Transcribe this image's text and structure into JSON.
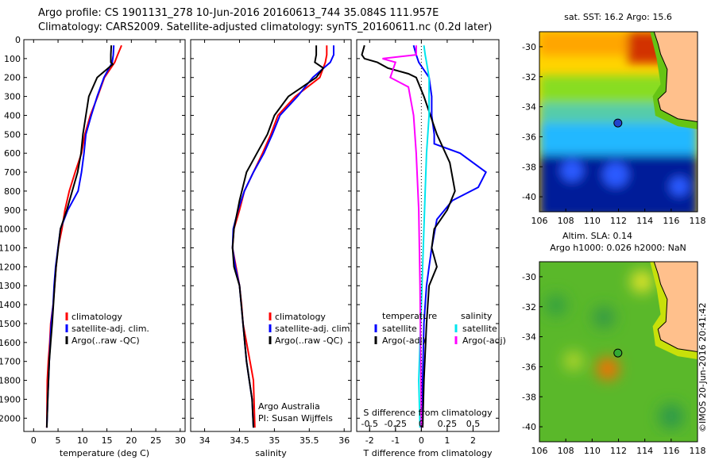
{
  "header": {
    "line1": "Argo profile: CS 1901131_278 10-Jun-2016 20160613_744 35.084S 111.957E",
    "line2": "Climatology: CARS2009. Satellite-adjusted climatology: synTS_20160611.nc (0.2d later)"
  },
  "colors": {
    "clim": "#ff0000",
    "sat": "#0000ff",
    "argo": "#000000",
    "salsat": "#00e5ee",
    "salargo": "#ff00ff",
    "marker": "#2244cc",
    "marker2": "#33aa33"
  },
  "chart_data": [
    {
      "type": "line",
      "id": "temperature",
      "xlabel": "temperature (deg C)",
      "xlim": [
        -2,
        31
      ],
      "xticks": [
        0,
        5,
        10,
        15,
        20,
        25,
        30
      ],
      "ylim": [
        2070,
        0
      ],
      "yticks": [
        0,
        100,
        200,
        300,
        400,
        500,
        600,
        700,
        800,
        900,
        1000,
        1100,
        1200,
        1300,
        1400,
        1500,
        1600,
        1700,
        1800,
        1900,
        2000
      ],
      "series": [
        {
          "name": "climatology",
          "color": "#ff0000",
          "x": [
            18,
            17.2,
            16.6,
            14.5,
            13.1,
            11.6,
            10.5,
            9.8,
            8.5,
            7.3,
            6.4,
            5.8,
            5.0,
            4.6,
            4.3,
            4.0,
            3.5,
            3.3,
            3.0,
            2.8,
            2.7
          ],
          "y": [
            30,
            80,
            120,
            200,
            300,
            400,
            500,
            600,
            700,
            800,
            900,
            1000,
            1100,
            1200,
            1300,
            1400,
            1500,
            1600,
            1700,
            1800,
            2050
          ]
        },
        {
          "name": "satellite-adj. clim.",
          "color": "#0000ff",
          "x": [
            16.4,
            16.3,
            16.1,
            14.4,
            13.0,
            11.8,
            10.7,
            10.3,
            9.8,
            9.1,
            7.0,
            5.5,
            4.5,
            4.2,
            4.0,
            3.6,
            3.2,
            2.9,
            2.7
          ],
          "y": [
            30,
            80,
            120,
            200,
            300,
            400,
            500,
            600,
            700,
            800,
            900,
            1000,
            1200,
            1300,
            1400,
            1500,
            1700,
            1900,
            2050
          ]
        },
        {
          "name": "Argo(..raw -QC)",
          "color": "#000000",
          "x": [
            15.9,
            15.8,
            15.8,
            16.2,
            13.0,
            11.3,
            10.7,
            10.1,
            9.7,
            9.0,
            6.8,
            5.5,
            4.6,
            4.3,
            3.8,
            3.5,
            3.2,
            2.9,
            2.7
          ],
          "y": [
            30,
            80,
            120,
            130,
            200,
            300,
            400,
            500,
            600,
            700,
            900,
            1000,
            1200,
            1300,
            1500,
            1600,
            1700,
            1900,
            2050
          ]
        }
      ],
      "legend": [
        "climatology",
        "satellite-adj. clim.",
        "Argo(..raw -QC)"
      ]
    },
    {
      "type": "line",
      "id": "salinity",
      "xlabel": "salinity",
      "xlim": [
        33.8,
        36.1
      ],
      "xticks": [
        34,
        34.5,
        35,
        35.5,
        36
      ],
      "ylim": [
        2070,
        0
      ],
      "series": [
        {
          "name": "climatology",
          "color": "#ff0000",
          "x": [
            35.75,
            35.75,
            35.73,
            35.65,
            35.3,
            35.05,
            34.95,
            34.83,
            34.7,
            34.57,
            34.5,
            34.42,
            34.4,
            34.45,
            34.5,
            34.53,
            34.55,
            34.6,
            34.65,
            34.7,
            34.72
          ],
          "y": [
            30,
            80,
            120,
            200,
            300,
            400,
            500,
            600,
            700,
            800,
            900,
            1000,
            1100,
            1200,
            1300,
            1400,
            1500,
            1600,
            1700,
            1800,
            2050
          ]
        },
        {
          "name": "satellite-adj. clim.",
          "color": "#0000ff",
          "x": [
            35.85,
            35.85,
            35.8,
            35.55,
            35.33,
            35.08,
            34.97,
            34.85,
            34.7,
            34.57,
            34.48,
            34.41,
            34.4,
            34.44,
            34.5,
            34.55,
            34.6,
            34.68,
            34.7
          ],
          "y": [
            30,
            80,
            120,
            200,
            300,
            400,
            500,
            600,
            700,
            800,
            900,
            1000,
            1100,
            1200,
            1300,
            1500,
            1700,
            1900,
            2050
          ]
        },
        {
          "name": "Argo(..raw -QC)",
          "color": "#000000",
          "x": [
            35.6,
            35.6,
            35.58,
            35.7,
            35.6,
            35.2,
            35.0,
            34.9,
            34.75,
            34.6,
            34.5,
            34.42,
            34.4,
            34.42,
            34.5,
            34.55,
            34.6,
            34.68,
            34.7
          ],
          "y": [
            30,
            80,
            120,
            150,
            200,
            300,
            400,
            500,
            600,
            700,
            850,
            1000,
            1100,
            1200,
            1300,
            1500,
            1700,
            1900,
            2050
          ]
        }
      ],
      "legend": [
        "climatology",
        "satellite-adj. clim.",
        "Argo(..raw -QC)"
      ],
      "annotation": [
        "Argo Australia",
        "PI: Susan Wijffels"
      ]
    },
    {
      "type": "line",
      "id": "difference",
      "xlabel": "T difference from climatology",
      "xlabel_top": "S difference from climatology",
      "xlim": [
        -2.5,
        3
      ],
      "xticks": [
        -2,
        -1,
        0,
        1,
        2
      ],
      "sticks_label": [
        "-0.5",
        "-0.25",
        "0",
        "0.25",
        "0.5"
      ],
      "sticks_at_T": [
        -2,
        -1,
        0,
        1,
        2
      ],
      "ylim": [
        2070,
        0
      ],
      "series": [
        {
          "name": "temperature satellite",
          "color": "#0000ff",
          "x": [
            -0.3,
            -0.2,
            -0.1,
            0.3,
            0.4,
            0.4,
            0.5,
            0.5,
            1.5,
            2.5,
            2.2,
            1.2,
            0.6,
            0.4,
            0.3,
            0.2,
            0.1,
            0.05,
            0
          ],
          "y": [
            30,
            80,
            120,
            200,
            300,
            400,
            500,
            550,
            600,
            700,
            780,
            850,
            950,
            1100,
            1200,
            1300,
            1500,
            1800,
            2050
          ]
        },
        {
          "name": "temperature Argo(-adj)",
          "color": "#000000",
          "x": [
            -2.2,
            -2.3,
            -2.2,
            -1.7,
            -1.3,
            -0.5,
            -0.2,
            0.1,
            0.6,
            1.1,
            1.3,
            1.0,
            0.5,
            0.4,
            0.6,
            0.3,
            0.2,
            0.1,
            0.05
          ],
          "y": [
            30,
            80,
            100,
            120,
            150,
            180,
            200,
            300,
            500,
            650,
            800,
            900,
            1000,
            1100,
            1200,
            1300,
            1500,
            1800,
            2050
          ]
        },
        {
          "name": "salinity satellite",
          "color": "#00e5ee",
          "x": [
            0.1,
            0.15,
            0.2,
            0.3,
            0.3,
            0.2,
            0.15,
            0.1,
            0.05,
            0,
            -0.05,
            -0.1,
            -0.05
          ],
          "y": [
            30,
            80,
            120,
            200,
            400,
            600,
            800,
            1000,
            1200,
            1400,
            1600,
            1800,
            2050
          ]
        },
        {
          "name": "salinity Argo(-adj)",
          "color": "#ff00ff",
          "x": [
            -0.2,
            -0.2,
            -1.5,
            -1.0,
            -1.2,
            -0.5,
            -0.3,
            -0.2,
            -0.1,
            -0.05,
            0
          ],
          "y": [
            30,
            80,
            100,
            120,
            200,
            250,
            400,
            600,
            900,
            1300,
            2050
          ]
        }
      ],
      "legend_titles": [
        "temperature",
        "salinity"
      ],
      "legend": [
        "satellite",
        "Argo(-adj)",
        "satellite",
        "Argo(-adj)"
      ]
    },
    {
      "type": "heatmap",
      "id": "sst-map",
      "title": "sat. SST: 16.2  Argo: 15.6",
      "xlim": [
        106,
        118
      ],
      "ylim": [
        -41,
        -29
      ],
      "xticks": [
        106,
        108,
        110,
        112,
        114,
        116,
        118
      ],
      "yticks": [
        -30,
        -32,
        -34,
        -36,
        -38,
        -40
      ],
      "marker": {
        "lon": 111.957,
        "lat": -35.084
      }
    },
    {
      "type": "heatmap",
      "id": "sla-map",
      "title": "Altim. SLA: 0.14",
      "subtitle": "Argo h1000: 0.026  h2000: NaN",
      "xlim": [
        106,
        118
      ],
      "ylim": [
        -41,
        -29
      ],
      "xticks": [
        106,
        108,
        110,
        112,
        114,
        116,
        118
      ],
      "yticks": [
        -30,
        -32,
        -34,
        -36,
        -38,
        -40
      ],
      "marker": {
        "lon": 111.957,
        "lat": -35.084
      }
    }
  ],
  "watermark": "©IMOS 20-Jun-2016 20:41:42"
}
